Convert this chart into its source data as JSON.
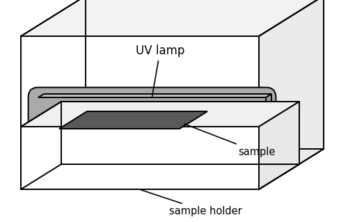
{
  "bg_color": "#ffffff",
  "line_color": "#000000",
  "line_width": 1.4,
  "lamp_color": "#aaaaaa",
  "sample_color": "#5a5a5a",
  "label_uv": "UV lamp",
  "label_sample": "sample",
  "label_holder": "sample holder",
  "fontsize": 10.5
}
